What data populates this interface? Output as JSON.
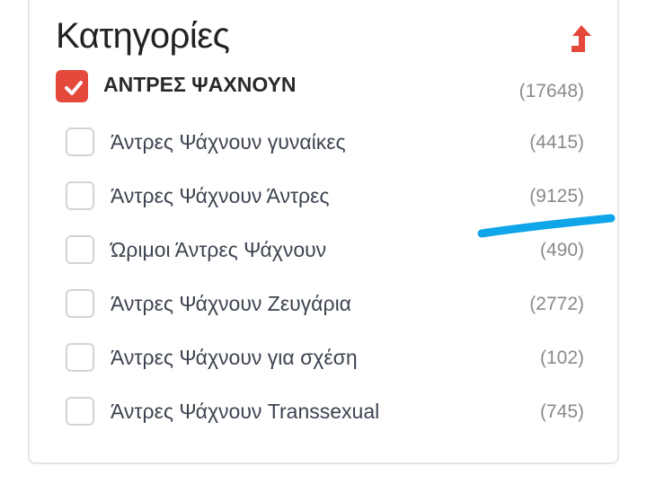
{
  "panel": {
    "title": "Κατηγορίες",
    "collapse_icon": "level-up-arrow-icon",
    "accent_color": "#e4493c",
    "parent": {
      "label": "ΑΝΤΡΕΣ ΨΑΧΝΟΥΝ",
      "count": "(17648)",
      "checked": true
    },
    "items": [
      {
        "label": "Άντρες Ψάχνουν γυναίκες",
        "count": "(4415)",
        "checked": false
      },
      {
        "label": "Άντρες Ψάχνουν Άντρες",
        "count": "(9125)",
        "checked": false
      },
      {
        "label": "Ώριμοι Άντρες Ψάχνουν",
        "count": "(490)",
        "checked": false
      },
      {
        "label": "Άντρες Ψάχνουν Ζευγάρια",
        "count": "(2772)",
        "checked": false
      },
      {
        "label": "Άντρες Ψάχνουν για σχέση",
        "count": "(102)",
        "checked": false
      },
      {
        "label": "Άντρες Ψάχνουν Transsexual",
        "count": "(745)",
        "checked": false
      }
    ]
  },
  "annotation": {
    "color": "#0ea5e9"
  }
}
